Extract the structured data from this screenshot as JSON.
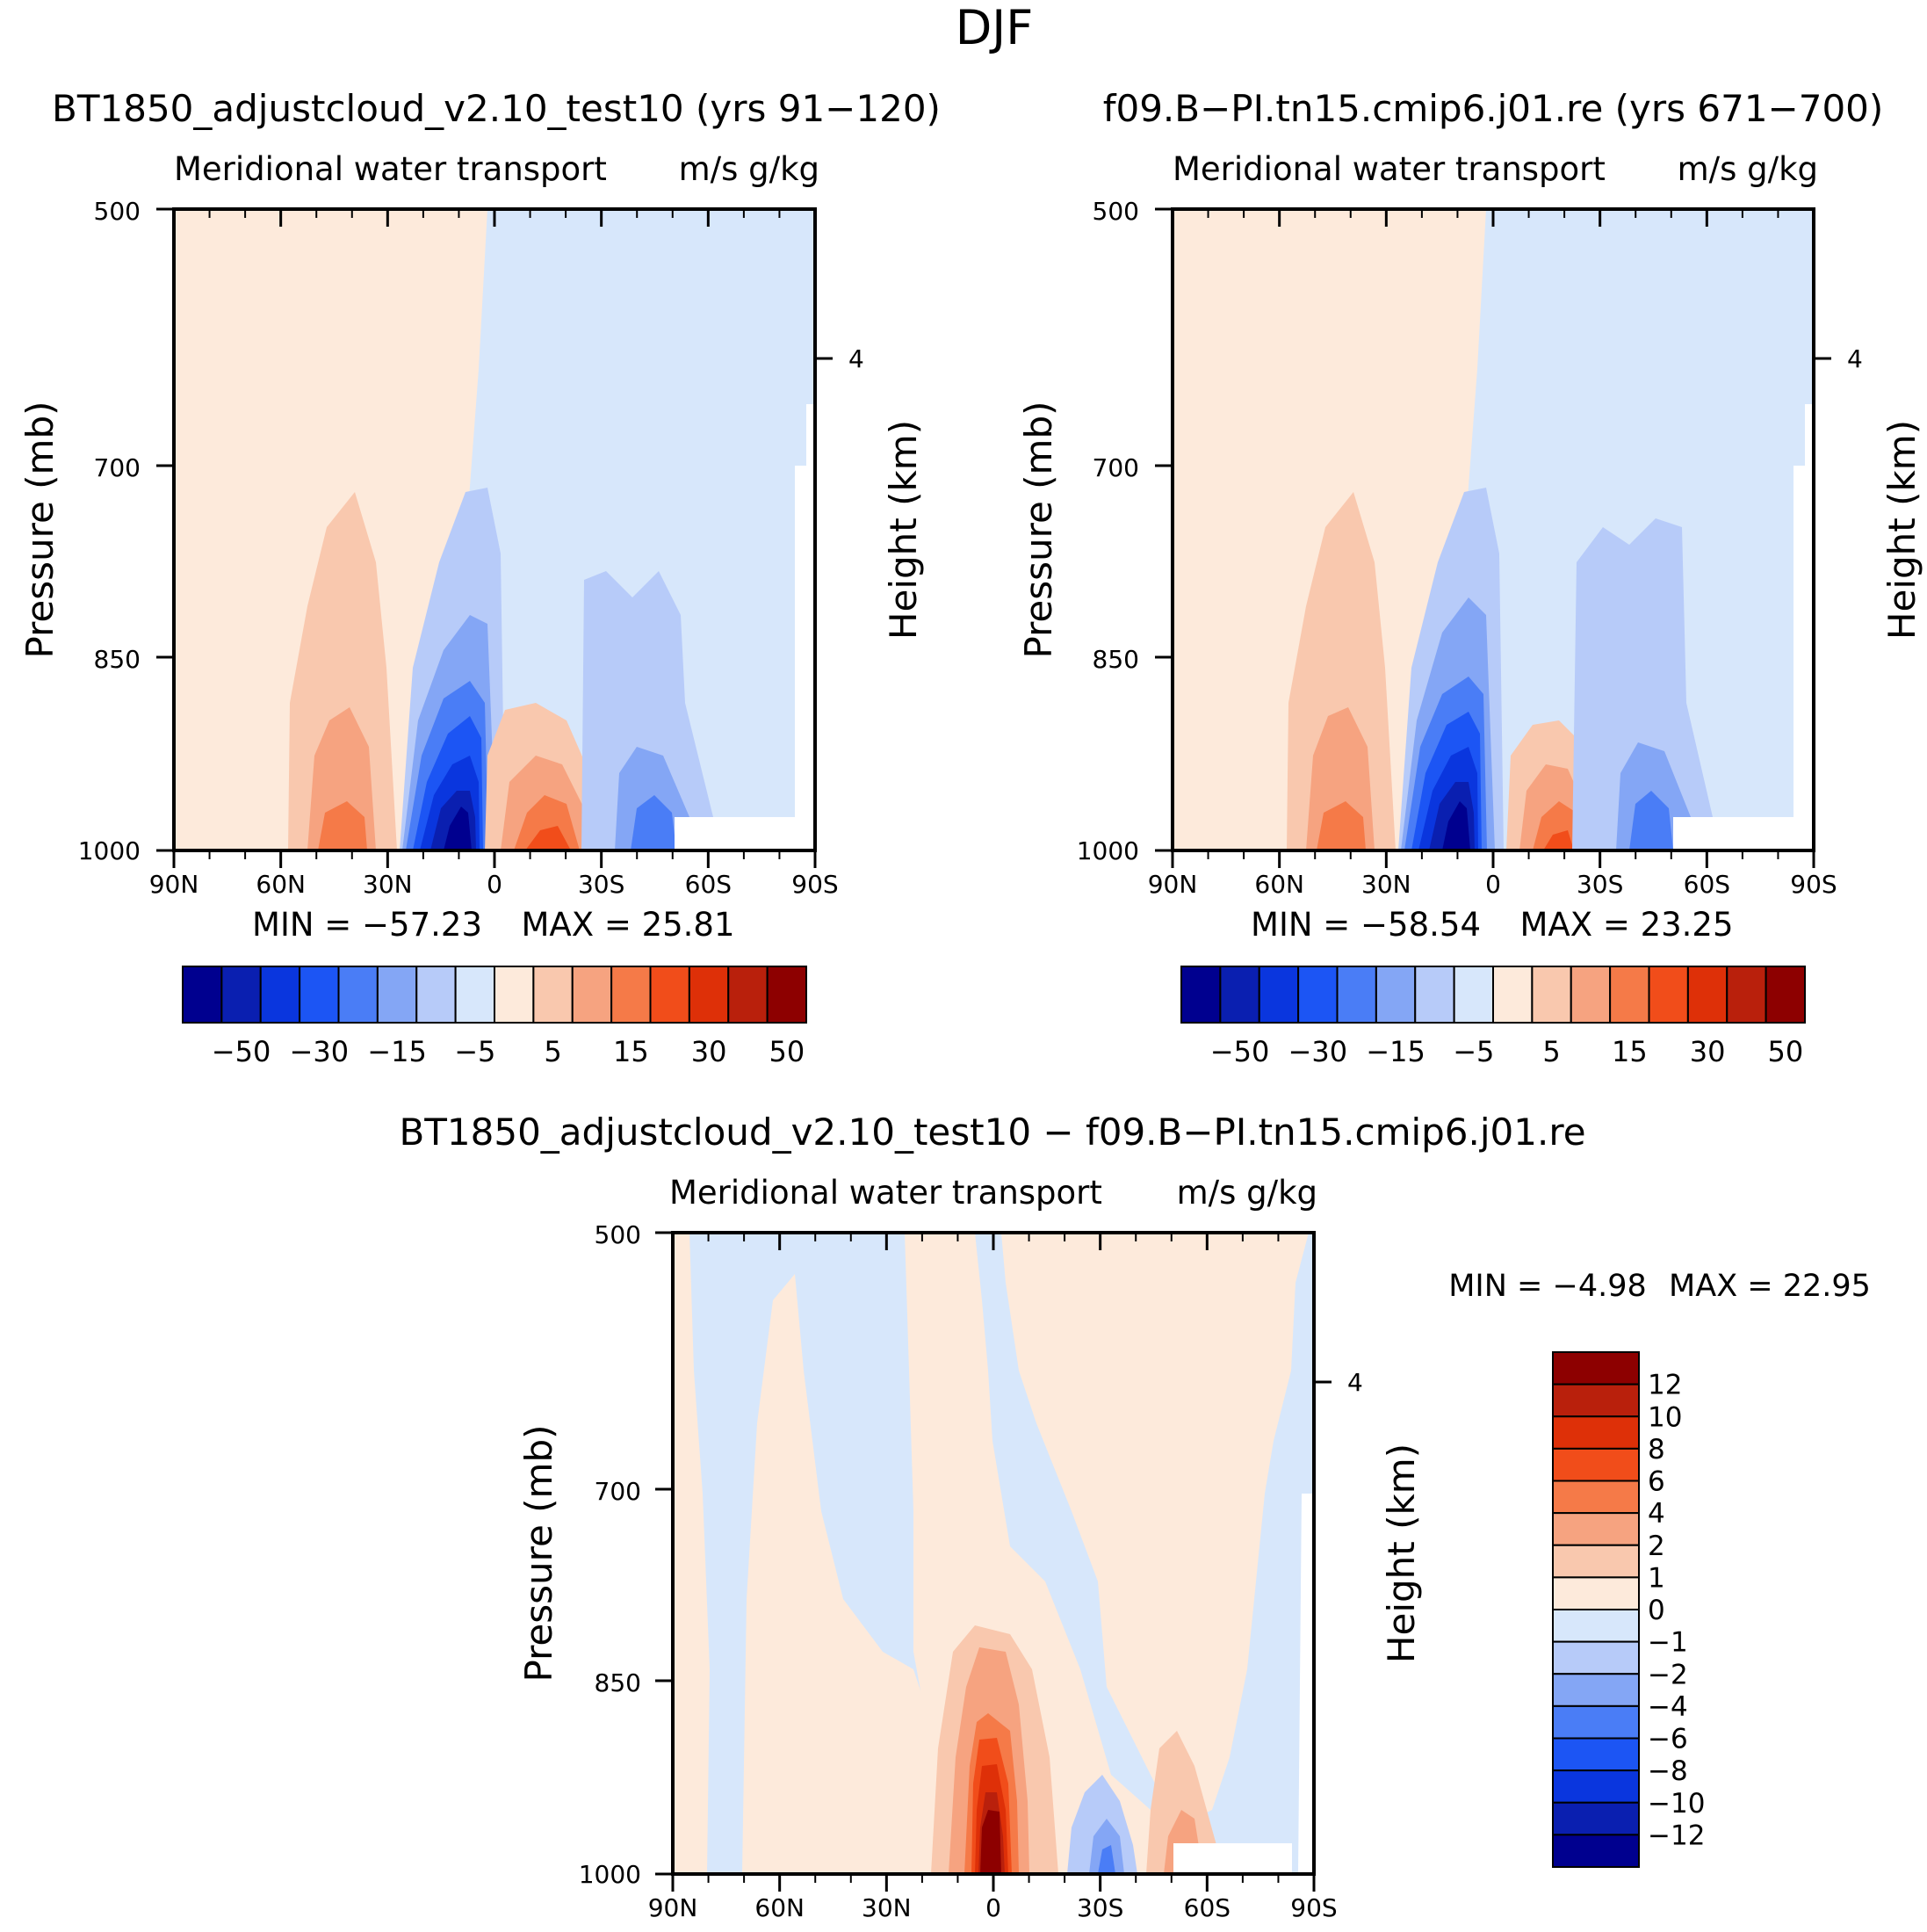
{
  "figure_title": "DJF",
  "chart_data": [
    {
      "type": "heatmap",
      "panel": "top-left",
      "case_title": "BT1850_adjustcloud_v2.10_test10 (yrs 91-120)",
      "left_string": "Meridional water transport",
      "right_string": "m/s g/kg",
      "ylabel": "Pressure (mb)",
      "right_ylabel": "Height (km)",
      "right_ytick": "4",
      "x_ticklabels": [
        "90N",
        "60N",
        "30N",
        "0",
        "30S",
        "60S",
        "90S"
      ],
      "x_range": [
        90,
        -90
      ],
      "y_ticklabels": [
        "500",
        "700",
        "850",
        "1000"
      ],
      "y_range": [
        1000,
        500
      ],
      "min_label": "MIN = -57.23",
      "max_label": "MAX = 25.81",
      "min": -57.23,
      "max": 25.81,
      "colorbar": {
        "orientation": "horizontal",
        "levels": [
          -60,
          -50,
          -40,
          -30,
          -20,
          -15,
          -10,
          -5,
          0,
          5,
          10,
          15,
          20,
          30,
          40,
          50,
          60
        ],
        "labels": [
          "-50",
          "-30",
          "-15",
          "-5",
          "5",
          "15",
          "30",
          "50"
        ]
      },
      "features": [
        {
          "lat_center": 40,
          "pressure_top": 720,
          "peak": 22,
          "sign": "positive"
        },
        {
          "lat_center": 9,
          "pressure_top": 720,
          "peak": -57,
          "sign": "negative"
        },
        {
          "lat_center": -16,
          "pressure_top": 880,
          "peak": 25,
          "sign": "positive"
        },
        {
          "lat_center": -45,
          "pressure_top": 790,
          "peak": -22,
          "sign": "negative"
        }
      ]
    },
    {
      "type": "heatmap",
      "panel": "top-right",
      "case_title": "f09.B-PI.tn15.cmip6.j01.re (yrs 671-700)",
      "left_string": "Meridional water transport",
      "right_string": "m/s g/kg",
      "ylabel": "Pressure (mb)",
      "right_ylabel": "Height (km)",
      "right_ytick": "4",
      "x_ticklabels": [
        "90N",
        "60N",
        "30N",
        "0",
        "30S",
        "60S",
        "90S"
      ],
      "x_range": [
        90,
        -90
      ],
      "y_ticklabels": [
        "500",
        "700",
        "850",
        "1000"
      ],
      "y_range": [
        1000,
        500
      ],
      "min_label": "MIN = -58.54",
      "max_label": "MAX = 23.25",
      "min": -58.54,
      "max": 23.25,
      "colorbar": {
        "orientation": "horizontal",
        "levels": [
          -60,
          -50,
          -40,
          -30,
          -20,
          -15,
          -10,
          -5,
          0,
          5,
          10,
          15,
          20,
          30,
          40,
          50,
          60
        ],
        "labels": [
          "-50",
          "-30",
          "-15",
          "-5",
          "5",
          "15",
          "30",
          "50"
        ]
      },
      "features": [
        {
          "lat_center": 40,
          "pressure_top": 720,
          "peak": 21,
          "sign": "positive"
        },
        {
          "lat_center": 9,
          "pressure_top": 720,
          "peak": -58,
          "sign": "negative"
        },
        {
          "lat_center": -16,
          "pressure_top": 880,
          "peak": 22,
          "sign": "positive"
        },
        {
          "lat_center": -45,
          "pressure_top": 760,
          "peak": -18,
          "sign": "negative"
        }
      ]
    },
    {
      "type": "heatmap",
      "panel": "bottom-difference",
      "case_title": "BT1850_adjustcloud_v2.10_test10 - f09.B-PI.tn15.cmip6.j01.re",
      "left_string": "Meridional water transport",
      "right_string": "m/s g/kg",
      "ylabel": "Pressure (mb)",
      "right_ylabel": "Height (km)",
      "right_ytick": "4",
      "x_ticklabels": [
        "90N",
        "60N",
        "30N",
        "0",
        "30S",
        "60S",
        "90S"
      ],
      "x_range": [
        90,
        -90
      ],
      "y_ticklabels": [
        "500",
        "700",
        "850",
        "1000"
      ],
      "y_range": [
        1000,
        500
      ],
      "min_label": "MIN = -4.98",
      "max_label": "MAX = 22.95",
      "min": -4.98,
      "max": 22.95,
      "colorbar": {
        "orientation": "vertical",
        "levels": [
          -14,
          -12,
          -10,
          -8,
          -6,
          -4,
          -2,
          -1,
          0,
          1,
          2,
          4,
          6,
          8,
          10,
          12,
          14
        ],
        "labels": [
          "12",
          "10",
          "8",
          "6",
          "4",
          "2",
          "1",
          "0",
          "-1",
          "-2",
          "-4",
          "-6",
          "-8",
          "-10",
          "-12"
        ]
      },
      "features": [
        {
          "lat_center": 0,
          "pressure_top": 830,
          "peak": 22.95,
          "sign": "positive"
        },
        {
          "lat_center": -30,
          "pressure_top": 900,
          "peak": -4.98,
          "sign": "negative"
        },
        {
          "lat_center": -55,
          "pressure_top": 860,
          "peak": 5,
          "sign": "positive"
        }
      ]
    }
  ],
  "colors": {
    "blue": [
      "#00008f",
      "#0a1fb0",
      "#0a36de",
      "#1c55f4",
      "#4a7df6",
      "#84a6f5",
      "#b7cbf9",
      "#d7e7fb"
    ],
    "red": [
      "#fdeadb",
      "#f9c8ae",
      "#f6a380",
      "#f57a48",
      "#f14d1a",
      "#de3008",
      "#b9200c",
      "#8d0000"
    ]
  }
}
